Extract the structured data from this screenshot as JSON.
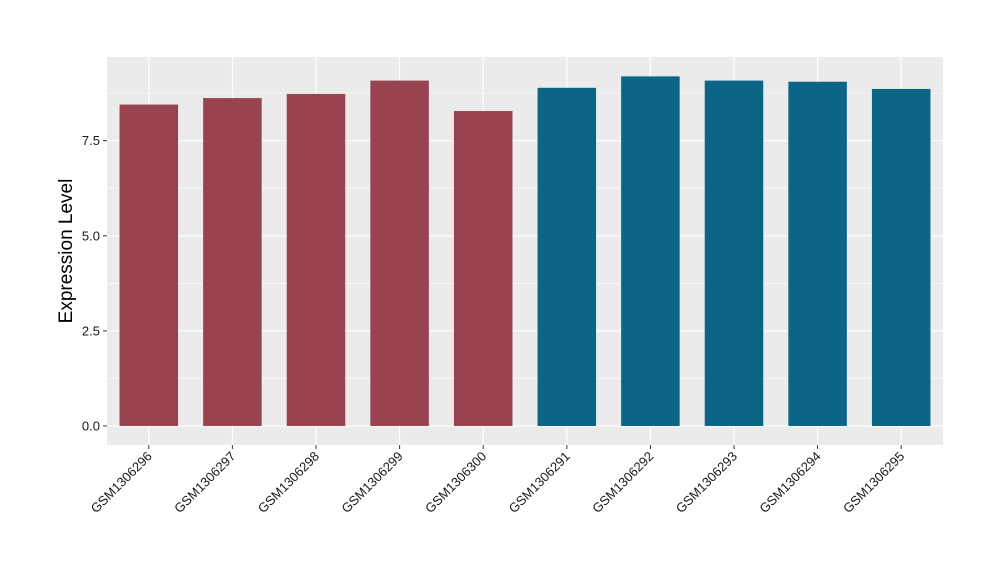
{
  "chart_data": {
    "type": "bar",
    "ylabel": "Expression Level",
    "xlabel": "",
    "title": "",
    "ylim": [
      -0.5,
      9.7
    ],
    "yticks": [
      0.0,
      2.5,
      5.0,
      7.5
    ],
    "ytick_labels": [
      "0.0",
      "2.5",
      "5.0",
      "7.5"
    ],
    "grid": true,
    "categories": [
      "GSM1306296",
      "GSM1306297",
      "GSM1306298",
      "GSM1306299",
      "GSM1306300",
      "GSM1306291",
      "GSM1306292",
      "GSM1306293",
      "GSM1306294",
      "GSM1306295"
    ],
    "values": [
      8.45,
      8.62,
      8.73,
      9.08,
      8.28,
      8.89,
      9.19,
      9.08,
      9.05,
      8.86
    ],
    "bar_colors": [
      "#994350",
      "#994350",
      "#994350",
      "#994350",
      "#994350",
      "#0b6585",
      "#0b6585",
      "#0b6585",
      "#0b6585",
      "#0b6585"
    ],
    "panel_background": "#ebebeb",
    "grid_color": "#ffffff"
  }
}
